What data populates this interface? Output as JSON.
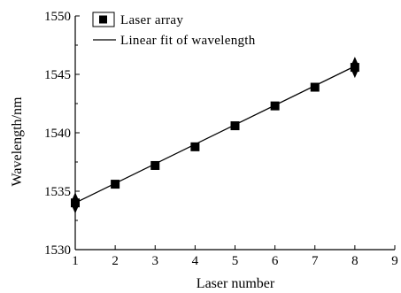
{
  "chart_data": {
    "type": "scatter",
    "xlabel": "Laser number",
    "ylabel": "Wavelength/nm",
    "xlim": [
      1,
      9
    ],
    "ylim": [
      1530,
      1550
    ],
    "xticks": [
      1,
      2,
      3,
      4,
      5,
      6,
      7,
      8,
      9
    ],
    "yticks": [
      1530,
      1535,
      1540,
      1545,
      1550
    ],
    "grid": false,
    "legend_position": "top-left",
    "series": [
      {
        "name": "Laser array",
        "kind": "points",
        "marker": "square",
        "x": [
          1,
          2,
          3,
          4,
          5,
          6,
          7,
          8
        ],
        "y": [
          1534.0,
          1535.6,
          1537.2,
          1538.8,
          1540.6,
          1542.3,
          1543.9,
          1545.6
        ]
      },
      {
        "name": "Linear fit of wavelength",
        "kind": "line",
        "x": [
          1,
          8
        ],
        "y": [
          1534.0,
          1545.7
        ]
      }
    ],
    "end_markers": [
      {
        "x": 1,
        "y": 1534.0
      },
      {
        "x": 8,
        "y": 1545.6
      }
    ],
    "colors": {
      "points": "#000000",
      "line": "#000000",
      "axes": "#000000"
    }
  }
}
